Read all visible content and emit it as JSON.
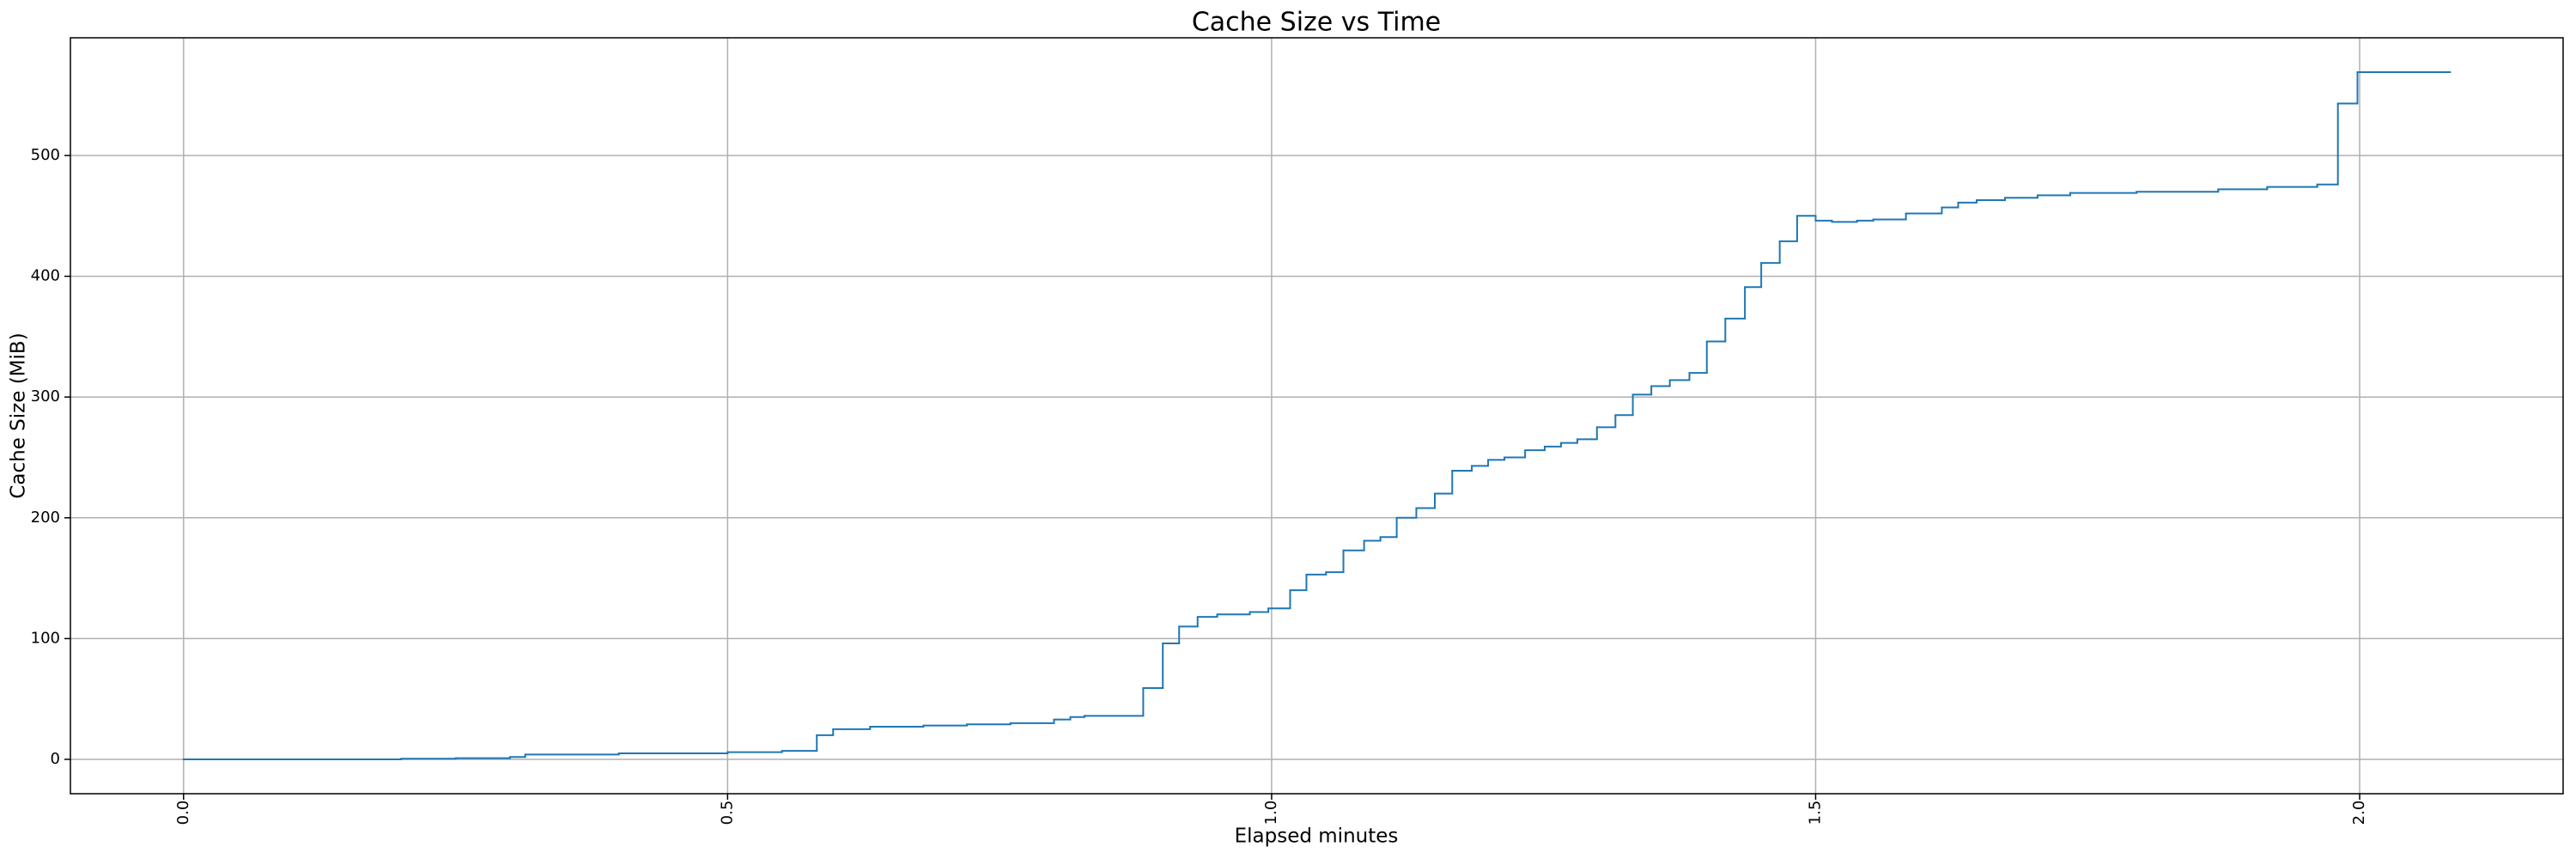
{
  "chart_data": {
    "type": "line",
    "title": "Cache Size vs Time",
    "xlabel": "Elapsed minutes",
    "ylabel": "Cache Size (MiB)",
    "drawstyle": "steps-post",
    "grid": true,
    "xlim": [
      -0.104,
      2.187
    ],
    "ylim": [
      -28.45,
      597.45
    ],
    "xticks": [
      {
        "value": 0,
        "label": "0.0"
      },
      0.5,
      {
        "value": 1,
        "label": "1.0"
      },
      1.5,
      {
        "value": 2,
        "label": "2.0"
      }
    ],
    "yticks": [
      0,
      100,
      200,
      300,
      400,
      500
    ],
    "x": [
      0,
      0.2,
      0.25,
      0.3,
      0.314,
      0.4,
      0.5,
      0.55,
      0.582,
      0.597,
      0.631,
      0.68,
      0.72,
      0.76,
      0.8,
      0.815,
      0.828,
      0.882,
      0.9,
      0.915,
      0.932,
      0.95,
      0.98,
      0.997,
      1.017,
      1.032,
      1.05,
      1.066,
      1.085,
      1.1,
      1.115,
      1.133,
      1.15,
      1.166,
      1.184,
      1.199,
      1.214,
      1.233,
      1.251,
      1.266,
      1.281,
      1.299,
      1.316,
      1.332,
      1.349,
      1.366,
      1.384,
      1.4,
      1.417,
      1.435,
      1.45,
      1.467,
      1.483,
      1.5,
      1.515,
      1.538,
      1.553,
      1.583,
      1.616,
      1.631,
      1.648,
      1.674,
      1.704,
      1.734,
      1.795,
      1.87,
      1.915,
      1.961,
      1.98,
      1.998,
      2.083
    ],
    "series": [
      {
        "name": "Cache Size",
        "color": "#1f77b4",
        "values": [
          0,
          0.5,
          1,
          2,
          4,
          5,
          6,
          7,
          20,
          25,
          27,
          28,
          29,
          30,
          33,
          35,
          36,
          59,
          96,
          110,
          118,
          120,
          122,
          125,
          140,
          153,
          155,
          173,
          181,
          184,
          200,
          208,
          220,
          239,
          243,
          248,
          250,
          256,
          259,
          262,
          265,
          275,
          285,
          302,
          309,
          314,
          320,
          346,
          365,
          391,
          411,
          429,
          450,
          446,
          445,
          446,
          447,
          452,
          457,
          461,
          463,
          465,
          467,
          469,
          470,
          472,
          474,
          476,
          543,
          569,
          569
        ]
      }
    ]
  }
}
